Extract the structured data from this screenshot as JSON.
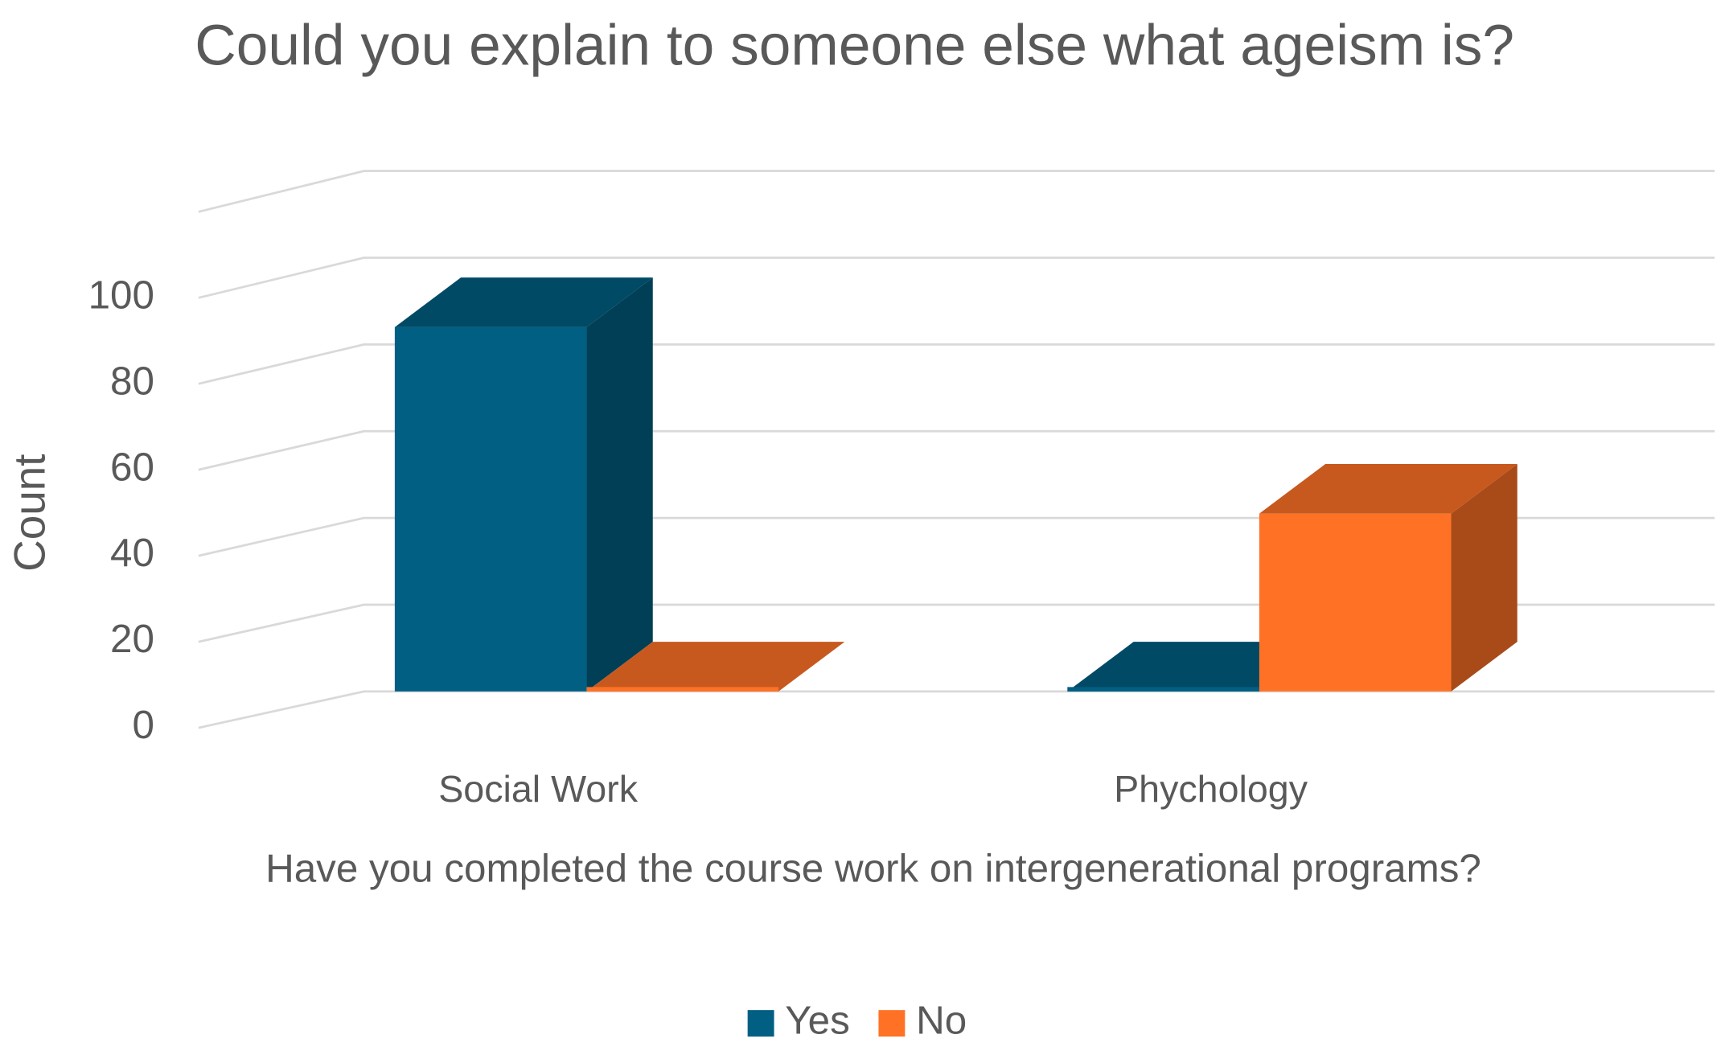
{
  "chart_data": {
    "type": "bar3d",
    "title": "Could you explain to someone else what ageism is?",
    "y_label": "Count",
    "x_label": "Have you completed the course work on intergenerational programs?",
    "categories": [
      "Social Work",
      "Phychology"
    ],
    "series": [
      {
        "name": "Yes",
        "color": "#005f83",
        "values": [
          84,
          0
        ]
      },
      {
        "name": "No",
        "color": "#ff7226",
        "values": [
          0,
          41
        ]
      }
    ],
    "ylim": [
      0,
      120
    ],
    "yticks": [
      0,
      20,
      40,
      60,
      80,
      100
    ],
    "grid": true,
    "legend": "bottom"
  }
}
